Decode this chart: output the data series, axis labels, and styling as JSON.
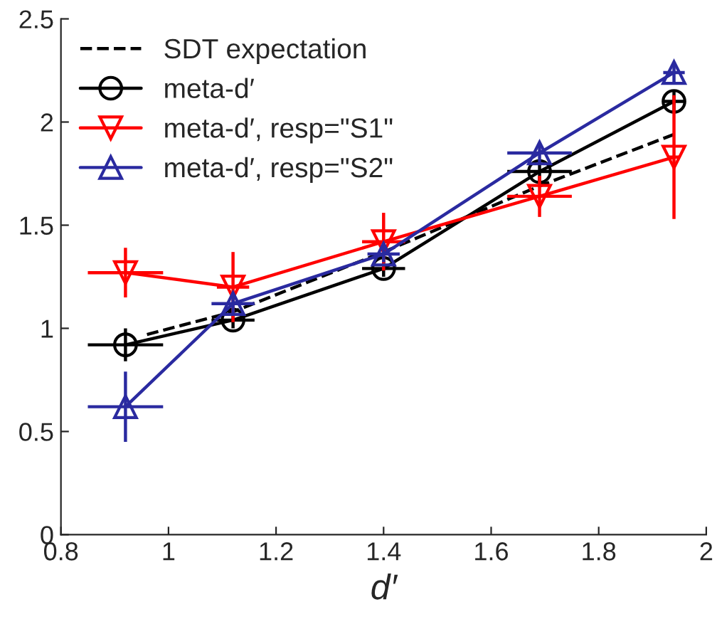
{
  "chart_data": {
    "type": "line",
    "xlabel": "d′",
    "xlim": [
      0.8,
      2
    ],
    "xticks": [
      0.8,
      1,
      1.2,
      1.4,
      1.6,
      1.8,
      2
    ],
    "ylim": [
      0,
      2.5
    ],
    "yticks": [
      0,
      0.5,
      1,
      1.5,
      2,
      2.5
    ],
    "grid": false,
    "legend": "top left",
    "series": [
      {
        "name": "SDT expectation",
        "color": "#000000",
        "line_style": "dashed",
        "marker": "none",
        "x": [
          0.96,
          1.12,
          1.4,
          1.69,
          1.94
        ],
        "values": [
          0.97,
          1.08,
          1.37,
          1.69,
          1.94
        ]
      },
      {
        "name": "meta-d′",
        "color": "#000000",
        "line_style": "solid",
        "marker": "circle",
        "x": [
          0.92,
          1.12,
          1.4,
          1.69,
          1.94
        ],
        "values": [
          0.92,
          1.04,
          1.29,
          1.76,
          2.1
        ],
        "errors": [
          0.08,
          0.04,
          0.04,
          0.05,
          0.05
        ],
        "xerrors": [
          0.07,
          0.04,
          0.04,
          0.06,
          0.02
        ]
      },
      {
        "name": "meta-d′, resp=\"S1\"",
        "color": "#ff0000",
        "line_style": "solid",
        "marker": "triangle_down",
        "x": [
          0.92,
          1.12,
          1.4,
          1.69,
          1.94
        ],
        "values": [
          1.27,
          1.2,
          1.42,
          1.64,
          1.83
        ],
        "errors": [
          0.12,
          0.17,
          0.14,
          0.1,
          0.3
        ],
        "xerrors": [
          0.07,
          0.03,
          0.04,
          0.06,
          0.01
        ]
      },
      {
        "name": "meta-d′, resp=\"S2\"",
        "color": "#2a2aa0",
        "line_style": "solid",
        "marker": "triangle",
        "x": [
          0.92,
          1.12,
          1.4,
          1.69,
          1.94
        ],
        "values": [
          0.62,
          1.12,
          1.36,
          1.85,
          2.24
        ],
        "errors": [
          0.17,
          0.05,
          0.04,
          0.05,
          0.05
        ],
        "xerrors": [
          0.07,
          0.04,
          0.03,
          0.06,
          0.02
        ]
      }
    ]
  }
}
